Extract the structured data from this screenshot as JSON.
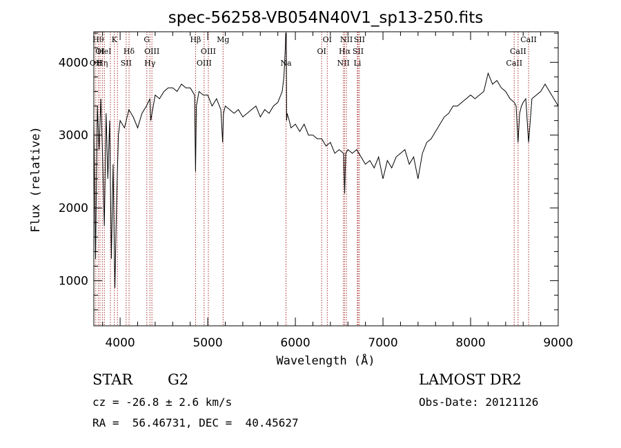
{
  "chart_data": {
    "type": "line",
    "title": "spec-56258-VB054N40V1_sp13-250.fits",
    "xlabel": "Wavelength (Å)",
    "ylabel": "Flux (relative)",
    "xlim": [
      3700,
      9000
    ],
    "ylim": [
      380,
      4420
    ],
    "xticks": [
      4000,
      5000,
      6000,
      7000,
      8000,
      9000
    ],
    "yticks": [
      1000,
      2000,
      3000,
      4000
    ],
    "grid": false,
    "series": [
      {
        "color": "#000000",
        "x": [
          3700,
          3720,
          3740,
          3760,
          3780,
          3800,
          3820,
          3840,
          3860,
          3880,
          3900,
          3920,
          3940,
          3960,
          3980,
          4000,
          4050,
          4100,
          4150,
          4200,
          4250,
          4300,
          4340,
          4350,
          4400,
          4450,
          4500,
          4550,
          4600,
          4650,
          4700,
          4750,
          4800,
          4850,
          4861,
          4870,
          4900,
          4950,
          5000,
          5050,
          5100,
          5150,
          5170,
          5180,
          5200,
          5250,
          5300,
          5350,
          5400,
          5450,
          5500,
          5550,
          5600,
          5650,
          5700,
          5750,
          5800,
          5850,
          5870,
          5885,
          5890,
          5893,
          5896,
          5900,
          5905,
          5930,
          5950,
          6000,
          6050,
          6100,
          6150,
          6200,
          6250,
          6300,
          6350,
          6400,
          6450,
          6500,
          6550,
          6563,
          6575,
          6600,
          6650,
          6700,
          6750,
          6800,
          6850,
          6900,
          6950,
          7000,
          7050,
          7100,
          7150,
          7200,
          7250,
          7300,
          7350,
          7400,
          7450,
          7500,
          7550,
          7600,
          7650,
          7700,
          7750,
          7800,
          7850,
          7900,
          7950,
          8000,
          8050,
          8100,
          8150,
          8200,
          8250,
          8300,
          8350,
          8400,
          8450,
          8498,
          8520,
          8542,
          8560,
          8580,
          8600,
          8630,
          8662,
          8700,
          8750,
          8800,
          8850,
          8900,
          8950,
          9000
        ],
        "y": [
          3200,
          1300,
          3400,
          2800,
          3500,
          2700,
          1750,
          3300,
          2400,
          3200,
          1300,
          2600,
          900,
          2100,
          3000,
          3200,
          3100,
          3350,
          3250,
          3100,
          3300,
          3400,
          3500,
          3200,
          3550,
          3500,
          3600,
          3650,
          3650,
          3600,
          3700,
          3650,
          3650,
          3550,
          2500,
          3400,
          3600,
          3550,
          3550,
          3400,
          3500,
          3350,
          2900,
          3300,
          3400,
          3350,
          3300,
          3350,
          3250,
          3300,
          3350,
          3400,
          3250,
          3350,
          3300,
          3400,
          3450,
          3600,
          3800,
          4200,
          4400,
          4400,
          4400,
          3200,
          3300,
          3200,
          3100,
          3150,
          3050,
          3150,
          3000,
          3000,
          2950,
          2950,
          2850,
          2900,
          2750,
          2800,
          2750,
          2200,
          2750,
          2800,
          2750,
          2800,
          2700,
          2600,
          2650,
          2550,
          2700,
          2400,
          2650,
          2550,
          2700,
          2750,
          2800,
          2600,
          2700,
          2400,
          2750,
          2900,
          2950,
          3050,
          3150,
          3250,
          3300,
          3400,
          3400,
          3450,
          3500,
          3550,
          3500,
          3550,
          3600,
          3850,
          3700,
          3750,
          3650,
          3600,
          3500,
          3450,
          3400,
          2900,
          3300,
          3400,
          3450,
          3500,
          2900,
          3500,
          3550,
          3600,
          3700,
          3600,
          3500,
          3400
        ]
      }
    ],
    "line_markers": [
      {
        "x": 3722,
        "label": "OII",
        "row": 3
      },
      {
        "x": 3750,
        "label": "Hθ",
        "row": 1
      },
      {
        "x": 3770,
        "label": "OI",
        "row": 2
      },
      {
        "x": 3797,
        "label": "Hη",
        "row": 3
      },
      {
        "x": 3820,
        "label": "HeI",
        "row": 2
      },
      {
        "x": 3889,
        "label": "",
        "row": 0
      },
      {
        "x": 3934,
        "label": "K",
        "row": 1
      },
      {
        "x": 3969,
        "label": "",
        "row": 0
      },
      {
        "x": 4069,
        "label": "SII",
        "row": 3
      },
      {
        "x": 4102,
        "label": "Hδ",
        "row": 2
      },
      {
        "x": 4305,
        "label": "G",
        "row": 1
      },
      {
        "x": 4340,
        "label": "Hγ",
        "row": 3
      },
      {
        "x": 4363,
        "label": "OIII",
        "row": 2
      },
      {
        "x": 4861,
        "label": "Hβ",
        "row": 1
      },
      {
        "x": 4959,
        "label": "OIII",
        "row": 3
      },
      {
        "x": 5007,
        "label": "OIII",
        "row": 2
      },
      {
        "x": 5175,
        "label": "Mg",
        "row": 1
      },
      {
        "x": 5893,
        "label": "Na",
        "row": 3
      },
      {
        "x": 6300,
        "label": "OI",
        "row": 2
      },
      {
        "x": 6364,
        "label": "OI",
        "row": 1
      },
      {
        "x": 6548,
        "label": "NII",
        "row": 3
      },
      {
        "x": 6563,
        "label": "Hα",
        "row": 2
      },
      {
        "x": 6583,
        "label": "NII",
        "row": 1
      },
      {
        "x": 6708,
        "label": "Li",
        "row": 3
      },
      {
        "x": 6716,
        "label": "SII",
        "row": 2
      },
      {
        "x": 6731,
        "label": "SII",
        "row": 1
      },
      {
        "x": 8498,
        "label": "CaII",
        "row": 3
      },
      {
        "x": 8542,
        "label": "CaII",
        "row": 2
      },
      {
        "x": 8662,
        "label": "CaII",
        "row": 1
      }
    ]
  },
  "info": {
    "object_class": "STAR",
    "subclass": "G2",
    "cz": "cz = -26.8 ± 2.6 km/s",
    "coords": "RA =  56.46731, DEC =  40.45627",
    "survey": "LAMOST DR2",
    "obs_date": "Obs-Date: 20121126"
  }
}
